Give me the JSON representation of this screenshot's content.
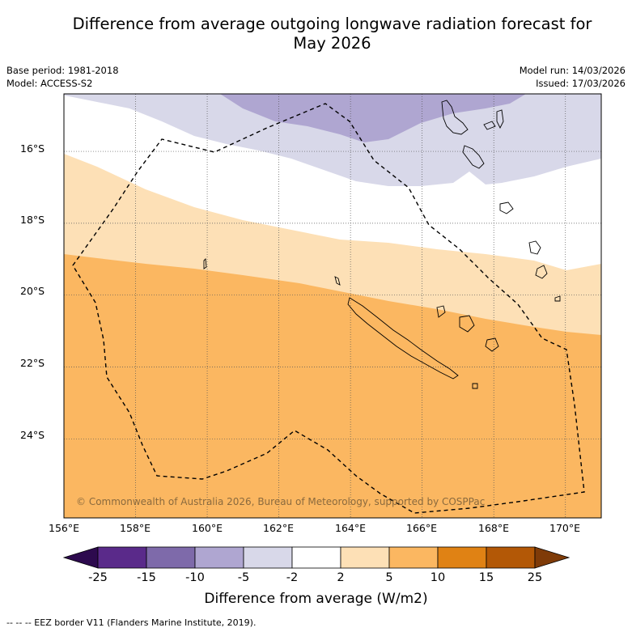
{
  "title_line1": "Difference from average outgoing longwave radiation forecast for",
  "title_line2": "May 2026",
  "meta_left": [
    "Base period: 1981-2018",
    "Model: ACCESS-S2"
  ],
  "meta_right": [
    "Model run: 14/03/2026",
    "Issued: 17/03/2026"
  ],
  "map": {
    "lon_range": [
      156,
      171
    ],
    "lat_range": [
      -26.2,
      -14.4
    ],
    "lat_labels": [
      "16°S",
      "18°S",
      "20°S",
      "22°S",
      "24°S"
    ],
    "lat_values": [
      -16,
      -18,
      -20,
      -22,
      -24
    ],
    "lon_labels": [
      "156°E",
      "158°E",
      "160°E",
      "162°E",
      "164°E",
      "166°E",
      "168°E",
      "170°E"
    ],
    "lon_values": [
      156,
      158,
      160,
      162,
      164,
      166,
      168,
      170
    ],
    "copyright": "© Commonwealth of Australia 2026, Bureau of Meteorology, supported by COSPPac"
  },
  "colorbar": {
    "ticks": [
      "-25",
      "-15",
      "-10",
      "-5",
      "-2",
      "2",
      "5",
      "10",
      "15",
      "25"
    ],
    "colors": [
      "#2d0a4e",
      "#5a2a8a",
      "#7e6aaa",
      "#afa6d1",
      "#d8d8e9",
      "#ffffff",
      "#fde0b6",
      "#fbb761",
      "#e08214",
      "#b35806",
      "#7f3b08"
    ],
    "label": "Difference from average (W/m2)"
  },
  "footnote": "--  --  -- EEZ border V11 (Flanders Marine Institute, 2019)."
}
